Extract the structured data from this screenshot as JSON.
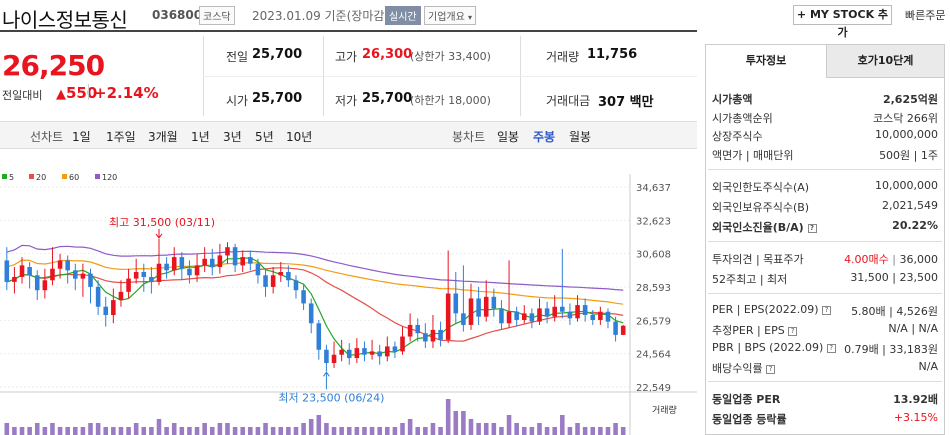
{
  "header": {
    "stock_name": "나이스정보통신",
    "stock_code": "036800",
    "market": "코스닥",
    "date_text": "2023.01.09 기준(장마감)",
    "live_label": "실시간",
    "company_info_label": "기업개요",
    "my_stock_label": "MY STOCK 추가",
    "quick_order_label": "빠른주문"
  },
  "price": {
    "current": "26,250",
    "change_label": "전일대비",
    "change_value": "550",
    "change_pct": "+2.14%"
  },
  "quote": {
    "prev_close_label": "전일",
    "prev_close": "25,700",
    "open_label": "시가",
    "open": "25,700",
    "high_label": "고가",
    "high": "26,300",
    "upper_limit": "(상한가 33,400)",
    "low_label": "저가",
    "low": "25,700",
    "lower_limit": "(하한가 18,000)",
    "volume_label": "거래량",
    "volume": "11,756",
    "amount_label": "거래대금",
    "amount": "307 백만"
  },
  "chart_tabs": {
    "line_label": "선차트",
    "line_items": [
      "1일",
      "1주일",
      "3개월",
      "1년",
      "3년",
      "5년",
      "10년"
    ],
    "candle_label": "봉차트",
    "candle_items": [
      "일봉",
      "주봉",
      "월봉"
    ],
    "candle_active": "주봉"
  },
  "colors": {
    "up": "#e8141e",
    "down": "#2f7fd8",
    "ma5": "#22a822",
    "ma20": "#e5504a",
    "ma60": "#f39c12",
    "ma120": "#8e5bc8",
    "volume": "#9b7bc4"
  },
  "chart_data": {
    "type": "candlestick",
    "legend": [
      "5",
      "20",
      "60",
      "120"
    ],
    "y_ticks": [
      "34,637",
      "32,623",
      "30,608",
      "28,593",
      "26,579",
      "24,564",
      "22,549"
    ],
    "ylim": [
      22549,
      34637
    ],
    "volume_label": "거래량",
    "annotation_high": "최고 31,500 (03/11)",
    "annotation_low": "최저 23,500 (06/24)",
    "candles": [
      {
        "o": 30200,
        "c": 28900,
        "h": 31000,
        "l": 28400
      },
      {
        "o": 28900,
        "c": 29200,
        "h": 29800,
        "l": 28200
      },
      {
        "o": 29200,
        "c": 29900,
        "h": 30400,
        "l": 28800
      },
      {
        "o": 29800,
        "c": 29300,
        "h": 30100,
        "l": 28500
      },
      {
        "o": 29300,
        "c": 28400,
        "h": 29600,
        "l": 27800
      },
      {
        "o": 28400,
        "c": 29000,
        "h": 29700,
        "l": 27900
      },
      {
        "o": 29000,
        "c": 29700,
        "h": 31000,
        "l": 28700
      },
      {
        "o": 29700,
        "c": 30200,
        "h": 30600,
        "l": 29100
      },
      {
        "o": 30200,
        "c": 29600,
        "h": 30500,
        "l": 28800
      },
      {
        "o": 29600,
        "c": 29100,
        "h": 30000,
        "l": 28400
      },
      {
        "o": 29100,
        "c": 29400,
        "h": 30000,
        "l": 28000
      },
      {
        "o": 29400,
        "c": 28600,
        "h": 29700,
        "l": 27600
      },
      {
        "o": 28600,
        "c": 27400,
        "h": 29000,
        "l": 26900
      },
      {
        "o": 27400,
        "c": 26900,
        "h": 28000,
        "l": 26200
      },
      {
        "o": 26900,
        "c": 27800,
        "h": 28500,
        "l": 26400
      },
      {
        "o": 27800,
        "c": 28300,
        "h": 29000,
        "l": 27400
      },
      {
        "o": 28300,
        "c": 29100,
        "h": 29700,
        "l": 27900
      },
      {
        "o": 29100,
        "c": 29500,
        "h": 30300,
        "l": 28800
      },
      {
        "o": 29500,
        "c": 29200,
        "h": 30000,
        "l": 28300
      },
      {
        "o": 29200,
        "c": 28900,
        "h": 29800,
        "l": 28200
      },
      {
        "o": 28900,
        "c": 30000,
        "h": 31500,
        "l": 28700
      },
      {
        "o": 30000,
        "c": 29600,
        "h": 30400,
        "l": 29100
      },
      {
        "o": 29600,
        "c": 30400,
        "h": 31000,
        "l": 29300
      },
      {
        "o": 30400,
        "c": 29700,
        "h": 30700,
        "l": 29000
      },
      {
        "o": 29700,
        "c": 29300,
        "h": 30200,
        "l": 28800
      },
      {
        "o": 29300,
        "c": 29900,
        "h": 30600,
        "l": 28900
      },
      {
        "o": 29900,
        "c": 30300,
        "h": 31000,
        "l": 29500
      },
      {
        "o": 30300,
        "c": 29800,
        "h": 30900,
        "l": 29300
      },
      {
        "o": 29800,
        "c": 30500,
        "h": 31200,
        "l": 29400
      },
      {
        "o": 30500,
        "c": 31000,
        "h": 31300,
        "l": 30000
      },
      {
        "o": 31000,
        "c": 29900,
        "h": 31200,
        "l": 29500
      },
      {
        "o": 29900,
        "c": 30400,
        "h": 30800,
        "l": 29500
      },
      {
        "o": 30400,
        "c": 30000,
        "h": 30800,
        "l": 29600
      },
      {
        "o": 30000,
        "c": 29300,
        "h": 30300,
        "l": 28800
      },
      {
        "o": 29300,
        "c": 28600,
        "h": 29700,
        "l": 28000
      },
      {
        "o": 28600,
        "c": 29300,
        "h": 29800,
        "l": 28200
      },
      {
        "o": 29300,
        "c": 29500,
        "h": 30100,
        "l": 28900
      },
      {
        "o": 29500,
        "c": 29000,
        "h": 29900,
        "l": 28600
      },
      {
        "o": 29000,
        "c": 28400,
        "h": 29300,
        "l": 27900
      },
      {
        "o": 28400,
        "c": 27600,
        "h": 28800,
        "l": 27200
      },
      {
        "o": 27600,
        "c": 26400,
        "h": 27900,
        "l": 25800
      },
      {
        "o": 26400,
        "c": 24800,
        "h": 26600,
        "l": 24200
      },
      {
        "o": 24800,
        "c": 24000,
        "h": 25100,
        "l": 23500
      },
      {
        "o": 24000,
        "c": 24500,
        "h": 25300,
        "l": 23700
      },
      {
        "o": 24500,
        "c": 24800,
        "h": 25400,
        "l": 24100
      },
      {
        "o": 24800,
        "c": 24300,
        "h": 25200,
        "l": 23900
      },
      {
        "o": 24300,
        "c": 24900,
        "h": 25500,
        "l": 24000
      },
      {
        "o": 24900,
        "c": 24500,
        "h": 25300,
        "l": 24100
      },
      {
        "o": 24500,
        "c": 24700,
        "h": 25400,
        "l": 24200
      },
      {
        "o": 24700,
        "c": 24400,
        "h": 25100,
        "l": 23900
      },
      {
        "o": 24400,
        "c": 25000,
        "h": 25600,
        "l": 24100
      },
      {
        "o": 25000,
        "c": 24700,
        "h": 25300,
        "l": 24300
      },
      {
        "o": 24700,
        "c": 25600,
        "h": 26200,
        "l": 24500
      },
      {
        "o": 25600,
        "c": 26300,
        "h": 27000,
        "l": 25300
      },
      {
        "o": 26300,
        "c": 25800,
        "h": 26700,
        "l": 25300
      },
      {
        "o": 25800,
        "c": 25300,
        "h": 26400,
        "l": 24900
      },
      {
        "o": 25300,
        "c": 26000,
        "h": 26900,
        "l": 24900
      },
      {
        "o": 26000,
        "c": 25400,
        "h": 26500,
        "l": 25000
      },
      {
        "o": 25400,
        "c": 28200,
        "h": 30800,
        "l": 25200
      },
      {
        "o": 28200,
        "c": 27000,
        "h": 29500,
        "l": 26400
      },
      {
        "o": 27000,
        "c": 26300,
        "h": 29900,
        "l": 25900
      },
      {
        "o": 26300,
        "c": 27900,
        "h": 28800,
        "l": 26000
      },
      {
        "o": 27900,
        "c": 26800,
        "h": 28600,
        "l": 26300
      },
      {
        "o": 26800,
        "c": 28000,
        "h": 29000,
        "l": 26500
      },
      {
        "o": 28000,
        "c": 27300,
        "h": 28500,
        "l": 26800
      },
      {
        "o": 27300,
        "c": 26400,
        "h": 27800,
        "l": 26000
      },
      {
        "o": 26400,
        "c": 27100,
        "h": 30200,
        "l": 26100
      },
      {
        "o": 27100,
        "c": 26600,
        "h": 27400,
        "l": 26200
      },
      {
        "o": 26600,
        "c": 27000,
        "h": 27500,
        "l": 26400
      },
      {
        "o": 27000,
        "c": 26500,
        "h": 27300,
        "l": 26100
      },
      {
        "o": 26500,
        "c": 27300,
        "h": 27900,
        "l": 26300
      },
      {
        "o": 27300,
        "c": 26800,
        "h": 27700,
        "l": 26400
      },
      {
        "o": 26800,
        "c": 27400,
        "h": 28100,
        "l": 26500
      },
      {
        "o": 27400,
        "c": 27100,
        "h": 30900,
        "l": 26700
      },
      {
        "o": 27100,
        "c": 26700,
        "h": 27600,
        "l": 26300
      },
      {
        "o": 26700,
        "c": 27500,
        "h": 28100,
        "l": 26500
      },
      {
        "o": 27500,
        "c": 26900,
        "h": 27900,
        "l": 26500
      },
      {
        "o": 26900,
        "c": 26600,
        "h": 27200,
        "l": 26300
      },
      {
        "o": 26600,
        "c": 27100,
        "h": 27400,
        "l": 26300
      },
      {
        "o": 27100,
        "c": 26500,
        "h": 27300,
        "l": 26100
      },
      {
        "o": 26500,
        "c": 25700,
        "h": 26800,
        "l": 25300
      },
      {
        "o": 25700,
        "c": 26250,
        "h": 26300,
        "l": 25700
      }
    ],
    "volumes": [
      3,
      2,
      2,
      2,
      3,
      2,
      3,
      2,
      2,
      2,
      2,
      3,
      3,
      2,
      2,
      2,
      2,
      3,
      2,
      2,
      4,
      2,
      3,
      2,
      2,
      2,
      3,
      2,
      3,
      3,
      2,
      2,
      2,
      2,
      3,
      2,
      2,
      2,
      2,
      3,
      4,
      5,
      3,
      2,
      2,
      2,
      2,
      2,
      2,
      2,
      2,
      2,
      3,
      4,
      2,
      2,
      3,
      2,
      9,
      6,
      6,
      4,
      3,
      3,
      3,
      2,
      5,
      3,
      2,
      2,
      3,
      2,
      2,
      5,
      2,
      3,
      2,
      2,
      2,
      2,
      3,
      2
    ]
  },
  "invest_info": {
    "tab_active": "투자정보",
    "tab_other": "호가10단계",
    "rows1": [
      {
        "label": "시가총액",
        "value": "2,625억원",
        "bold": true
      },
      {
        "label": "시가총액순위",
        "value": "코스닥 266위"
      },
      {
        "label": "상장주식수",
        "value": "10,000,000"
      },
      {
        "label": "액면가 | 매매단위",
        "value": "500원 | 1주"
      }
    ],
    "rows2": [
      {
        "label": "외국인한도주식수(A)",
        "value": "10,000,000"
      },
      {
        "label": "외국인보유주식수(B)",
        "value": "2,021,549"
      },
      {
        "label": "외국인소진율(B/A)",
        "value": "20.22%",
        "bold": true
      }
    ],
    "opinion_label": "투자의견 | 목표주가",
    "opinion_value": "4.00매수",
    "target_value": "36,000",
    "week52_label": "52주최고 | 최저",
    "week52_value": "31,500 | 23,500",
    "per_label": "PER | EPS(2022.09)",
    "per_value": "5.80배 | 4,526원",
    "est_per_label": "추정PER | EPS",
    "est_per_value": "N/A | N/A",
    "pbr_label": "PBR | BPS (2022.09)",
    "pbr_value": "0.79배 | 33,183원",
    "div_label": "배당수익률",
    "div_value": "N/A",
    "ind_per_label": "동일업종 PER",
    "ind_per_value": "13.92배",
    "ind_rate_label": "동일업종 등락률",
    "ind_rate_value": "+3.15%"
  }
}
